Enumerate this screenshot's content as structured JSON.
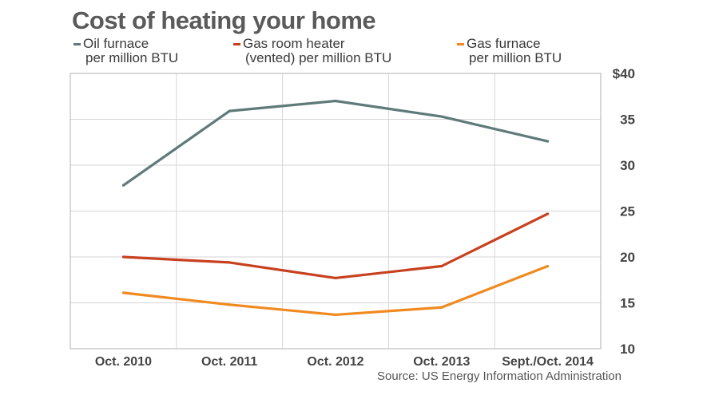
{
  "chart_data": {
    "type": "line",
    "title": "Cost of heating your home",
    "categories": [
      "Oct. 2010",
      "Oct. 2011",
      "Oct. 2012",
      "Oct. 2013",
      "Sept./Oct. 2014"
    ],
    "series": [
      {
        "name": "Oil furnace",
        "name_line2": "per million BTU",
        "color": "#5e7b79",
        "values": [
          27.8,
          35.9,
          37.0,
          35.3,
          32.6
        ]
      },
      {
        "name": "Gas room heater",
        "name_line2": "(vented) per million BTU",
        "color": "#c8411f",
        "values": [
          20.0,
          19.4,
          17.7,
          19.0,
          24.7
        ]
      },
      {
        "name": "Gas furnace",
        "name_line2": "per million BTU",
        "color": "#f08a1f",
        "values": [
          16.1,
          14.8,
          13.7,
          14.5,
          19.0
        ]
      }
    ],
    "ylim": [
      10,
      40
    ],
    "yticks": [
      10,
      15,
      20,
      25,
      30,
      35,
      40
    ],
    "ytick_labels": [
      "10",
      "15",
      "20",
      "25",
      "30",
      "35",
      "$40"
    ],
    "yaxis_side": "right",
    "grid": true,
    "legend_placement": "top",
    "source": "Source: US Energy Information Administration"
  }
}
